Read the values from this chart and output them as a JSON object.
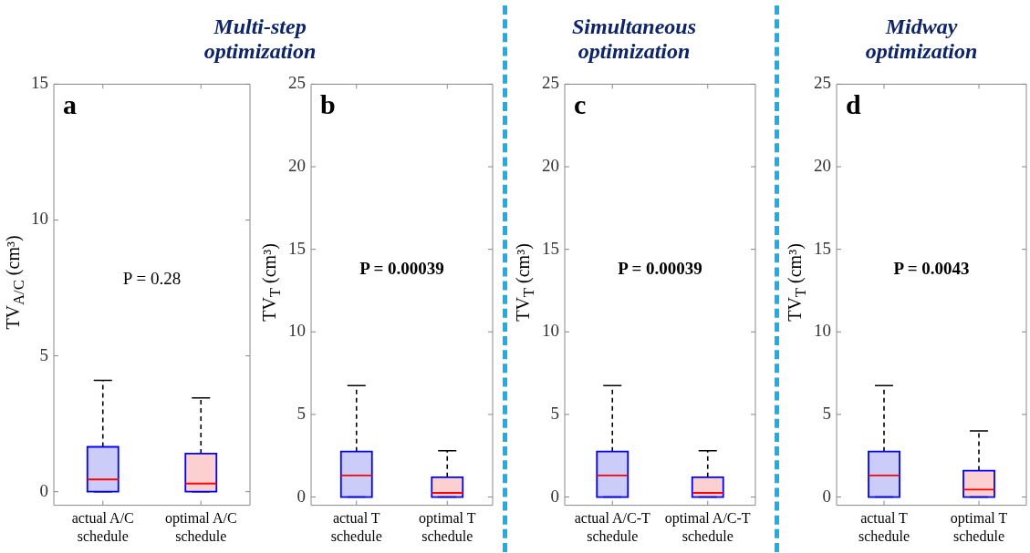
{
  "chart_data": [
    {
      "type": "box",
      "title": "Multi-step optimization",
      "ylabel": "TV$_{A/C}$ (cm³)",
      "categories": [
        "actual A/C schedule",
        "optimal A/C schedule"
      ],
      "colors": [
        "#ccccf8",
        "#fcd0d0"
      ],
      "boxes": [
        {
          "low": 0,
          "q1": 0,
          "median": 0.45,
          "q3": 1.65,
          "high": 4.1
        },
        {
          "low": 0,
          "q1": 0,
          "median": 0.3,
          "q3": 1.4,
          "high": 3.45
        }
      ],
      "ylim": [
        -0.5,
        15
      ],
      "yticks": [
        0,
        5,
        10,
        15
      ],
      "grid": false,
      "annotations": [
        "a",
        "P = 0.28"
      ]
    },
    {
      "type": "box",
      "ylabel": "TV$_{T}$ (cm³)",
      "categories": [
        "actual T schedule",
        "optimal T schedule"
      ],
      "colors": [
        "#ccccf8",
        "#fcd0d0"
      ],
      "boxes": [
        {
          "low": 0,
          "q1": 0,
          "median": 1.3,
          "q3": 2.75,
          "high": 6.75
        },
        {
          "low": 0,
          "q1": 0,
          "median": 0.25,
          "q3": 1.2,
          "high": 2.8
        }
      ],
      "ylim": [
        -0.5,
        25
      ],
      "yticks": [
        0,
        5,
        10,
        15,
        20,
        25
      ],
      "grid": false,
      "annotations": [
        "b",
        "P = 0.00039"
      ]
    },
    {
      "type": "box",
      "title": "Simultaneous optimization",
      "ylabel": "TV$_{T}$ (cm³)",
      "categories": [
        "actual A/C-T schedule",
        "optimal A/C-T schedule"
      ],
      "colors": [
        "#ccccf8",
        "#fcd0d0"
      ],
      "boxes": [
        {
          "low": 0,
          "q1": 0,
          "median": 1.3,
          "q3": 2.75,
          "high": 6.75
        },
        {
          "low": 0,
          "q1": 0,
          "median": 0.25,
          "q3": 1.2,
          "high": 2.8
        }
      ],
      "ylim": [
        -0.5,
        25
      ],
      "yticks": [
        0,
        5,
        10,
        15,
        20,
        25
      ],
      "grid": false,
      "annotations": [
        "c",
        "P = 0.00039"
      ]
    },
    {
      "type": "box",
      "title": "Midway optimization",
      "ylabel": "TV$_{T}$ (cm³)",
      "categories": [
        "actual T schedule",
        "optimal T schedule"
      ],
      "colors": [
        "#ccccf8",
        "#fcd0d0"
      ],
      "boxes": [
        {
          "low": 0,
          "q1": 0,
          "median": 1.3,
          "q3": 2.75,
          "high": 6.75
        },
        {
          "low": 0,
          "q1": 0,
          "median": 0.45,
          "q3": 1.6,
          "high": 4.0
        }
      ],
      "ylim": [
        -0.5,
        25
      ],
      "yticks": [
        0,
        5,
        10,
        15,
        20,
        25
      ],
      "grid": false,
      "annotations": [
        "d",
        "P = 0.0043"
      ]
    }
  ]
}
